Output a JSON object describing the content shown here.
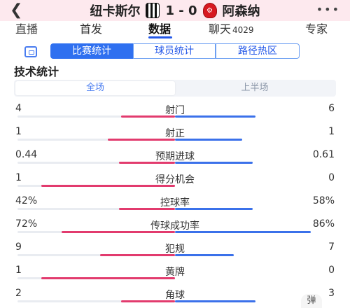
{
  "header": {
    "home_team": "纽卡斯尔",
    "score": "1 - 0",
    "away_team": "阿森纳",
    "home_crest_icon": "newcastle-crest-icon",
    "away_crest_icon": "arsenal-crest-icon"
  },
  "tabs": [
    {
      "label": "直播"
    },
    {
      "label": "首发"
    },
    {
      "label": "数据",
      "active": true
    },
    {
      "label": "聊天",
      "count": "4029"
    },
    {
      "label": "专家"
    }
  ],
  "subtabs": [
    "比赛统计",
    "球员统计",
    "路径热区"
  ],
  "section_title": "技术统计",
  "period": {
    "full": "全场",
    "first_half": "上半场"
  },
  "colors": {
    "home": "#e23b6e",
    "away": "#3b71ea",
    "accent": "#2f70f0"
  },
  "stats": [
    {
      "label": "射门",
      "home": "4",
      "away": "6",
      "home_share": 0.4
    },
    {
      "label": "射正",
      "home": "1",
      "away": "1",
      "home_share": 0.5
    },
    {
      "label": "预期进球",
      "home": "0.44",
      "away": "0.61",
      "home_share": 0.42
    },
    {
      "label": "得分机会",
      "home": "1",
      "away": "0",
      "home_share": 1.0
    },
    {
      "label": "控球率",
      "home": "42%",
      "away": "58%",
      "home_share": 0.42
    },
    {
      "label": "传球成功率",
      "home": "72%",
      "away": "86%",
      "home_share": 0.72,
      "away_share": 0.86,
      "ratio_mode": true
    },
    {
      "label": "犯规",
      "home": "9",
      "away": "7",
      "home_share": 0.56
    },
    {
      "label": "黄牌",
      "home": "1",
      "away": "0",
      "home_share": 1.0
    },
    {
      "label": "角球",
      "home": "2",
      "away": "3",
      "home_share": 0.4
    }
  ],
  "float_button": "弹"
}
